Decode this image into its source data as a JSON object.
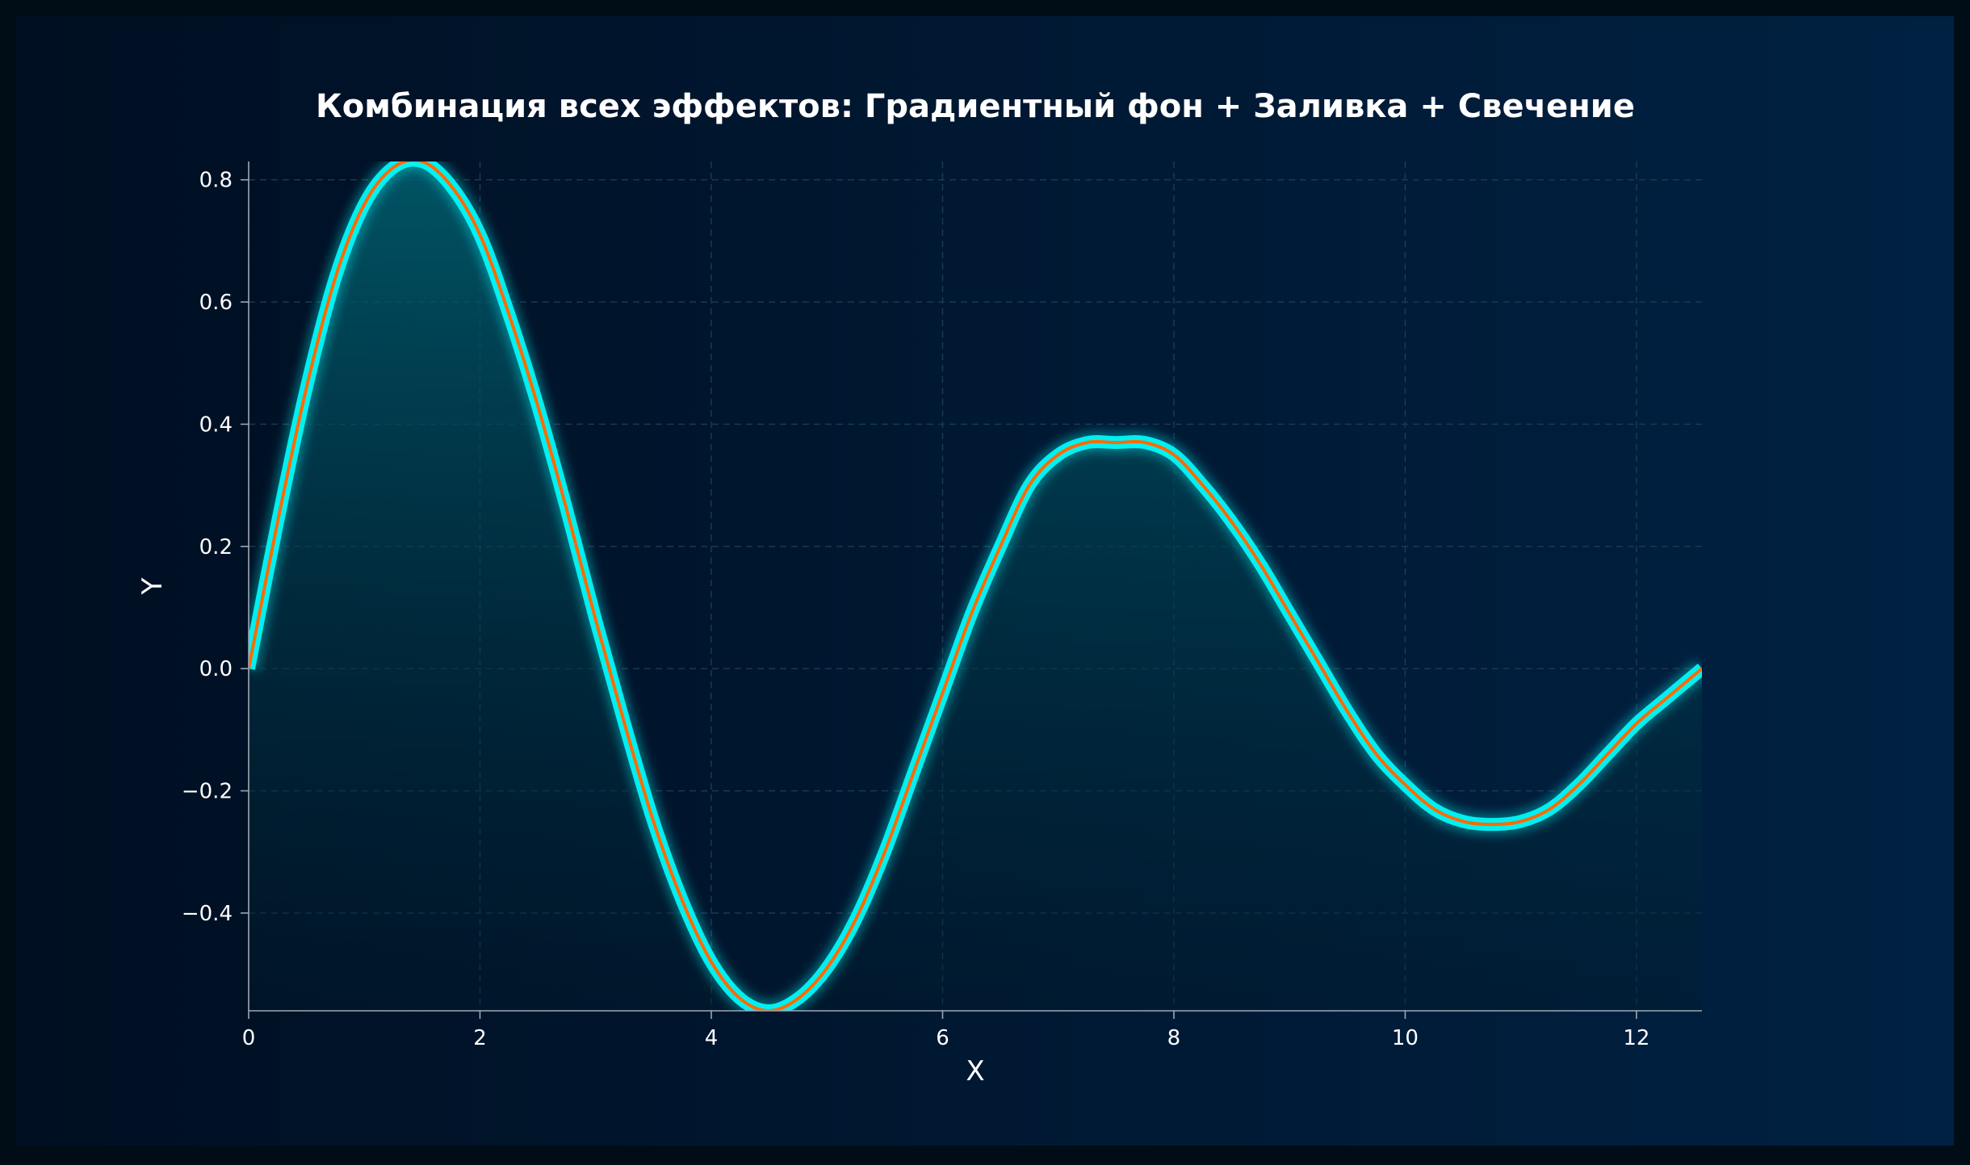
{
  "chart_data": {
    "type": "area",
    "title": "Комбинация всех эффектов: Градиентный фон + Заливка + Свечение",
    "xlabel": "X",
    "ylabel": "Y",
    "xlim": [
      0,
      12.566
    ],
    "ylim": [
      -0.56,
      0.83
    ],
    "x_ticks": [
      0,
      2,
      4,
      6,
      8,
      10,
      12
    ],
    "x_tick_labels": [
      "0",
      "2",
      "4",
      "6",
      "8",
      "10",
      "12"
    ],
    "y_ticks": [
      -0.4,
      -0.2,
      0.0,
      0.2,
      0.4,
      0.6,
      0.8
    ],
    "y_tick_labels": [
      "−0.4",
      "−0.2",
      "0.0",
      "0.2",
      "0.4",
      "0.6",
      "0.8"
    ],
    "grid": true,
    "legend": "none",
    "fill_to": "bottom",
    "series": [
      {
        "x": [
          0,
          0.25,
          0.5,
          0.75,
          1.0,
          1.25,
          1.5,
          1.75,
          2.0,
          2.25,
          2.5,
          2.75,
          3.0,
          3.25,
          3.5,
          3.75,
          4.0,
          4.25,
          4.5,
          4.75,
          5.0,
          5.25,
          5.5,
          5.75,
          6.0,
          6.25,
          6.5,
          6.75,
          7.0,
          7.25,
          7.5,
          7.75,
          8.0,
          8.25,
          8.5,
          8.75,
          9.0,
          9.25,
          9.5,
          9.75,
          10.0,
          10.25,
          10.5,
          10.75,
          11.0,
          11.25,
          11.5,
          11.75,
          12.0,
          12.25,
          12.566
        ],
        "y": [
          0.0,
          0.24,
          0.46,
          0.64,
          0.76,
          0.82,
          0.83,
          0.79,
          0.71,
          0.58,
          0.43,
          0.26,
          0.08,
          -0.09,
          -0.25,
          -0.38,
          -0.48,
          -0.54,
          -0.56,
          -0.54,
          -0.49,
          -0.41,
          -0.3,
          -0.17,
          -0.04,
          0.09,
          0.2,
          0.3,
          0.35,
          0.37,
          0.37,
          0.37,
          0.35,
          0.3,
          0.24,
          0.17,
          0.09,
          0.01,
          -0.07,
          -0.14,
          -0.19,
          -0.23,
          -0.25,
          -0.255,
          -0.25,
          -0.23,
          -0.19,
          -0.14,
          -0.09,
          -0.05,
          0.0
        ]
      }
    ],
    "colors": {
      "line": "#ff6a00",
      "glow": "#00ffff",
      "fill_top": "#006070",
      "fill_bottom": "#001a2a",
      "bg_left": "#000f22",
      "bg_right": "#002142",
      "text": "#ffffff",
      "grid": "#1f3a52",
      "axis": "#9aa8b5"
    }
  }
}
